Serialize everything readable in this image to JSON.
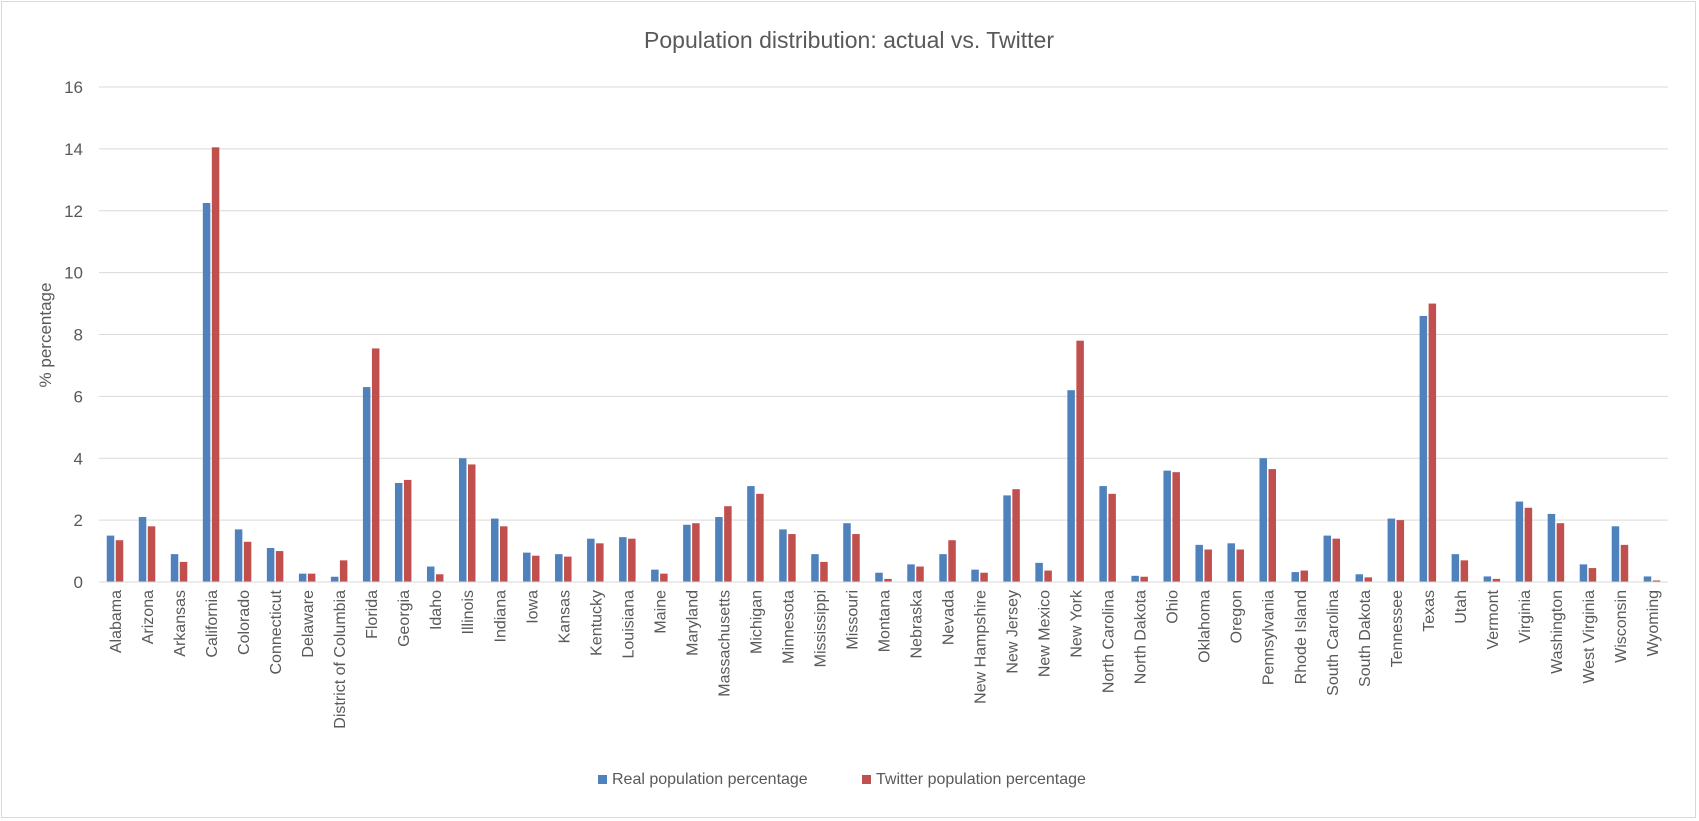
{
  "chart_data": {
    "type": "bar",
    "title": "Population distribution: actual vs. Twitter",
    "xlabel": "",
    "ylabel": "% percentage",
    "ylim": [
      0,
      16
    ],
    "yticks": [
      0,
      2,
      4,
      6,
      8,
      10,
      12,
      14,
      16
    ],
    "grid": true,
    "legend_position": "bottom",
    "categories": [
      "Alabama",
      "Arizona",
      "Arkansas",
      "California",
      "Colorado",
      "Connecticut",
      "Delaware",
      "District of Columbia",
      "Florida",
      "Georgia",
      "Idaho",
      "Illinois",
      "Indiana",
      "Iowa",
      "Kansas",
      "Kentucky",
      "Louisiana",
      "Maine",
      "Maryland",
      "Massachusetts",
      "Michigan",
      "Minnesota",
      "Mississippi",
      "Missouri",
      "Montana",
      "Nebraska",
      "Nevada",
      "New Hampshire",
      "New Jersey",
      "New Mexico",
      "New York",
      "North Carolina",
      "North Dakota",
      "Ohio",
      "Oklahoma",
      "Oregon",
      "Pennsylvania",
      "Rhode Island",
      "South Carolina",
      "South Dakota",
      "Tennessee",
      "Texas",
      "Utah",
      "Vermont",
      "Virginia",
      "Washington",
      "West Virginia",
      "Wisconsin",
      "Wyoming"
    ],
    "series": [
      {
        "name": "Real population percentage",
        "color": "#4f81bd",
        "values": [
          1.5,
          2.1,
          0.9,
          12.25,
          1.7,
          1.1,
          0.27,
          0.17,
          6.3,
          3.2,
          0.5,
          4.0,
          2.05,
          0.95,
          0.9,
          1.4,
          1.45,
          0.4,
          1.85,
          2.1,
          3.1,
          1.7,
          0.9,
          1.9,
          0.3,
          0.57,
          0.9,
          0.4,
          2.8,
          0.62,
          6.2,
          3.1,
          0.2,
          3.6,
          1.2,
          1.25,
          4.0,
          0.32,
          1.5,
          0.25,
          2.05,
          8.6,
          0.9,
          0.18,
          2.6,
          2.2,
          0.57,
          1.8,
          0.18
        ]
      },
      {
        "name": "Twitter population percentage",
        "color": "#c0504d",
        "values": [
          1.35,
          1.8,
          0.65,
          14.05,
          1.3,
          1.0,
          0.27,
          0.7,
          7.55,
          3.3,
          0.25,
          3.8,
          1.8,
          0.85,
          0.82,
          1.25,
          1.4,
          0.27,
          1.9,
          2.45,
          2.85,
          1.55,
          0.65,
          1.55,
          0.1,
          0.5,
          1.35,
          0.3,
          3.0,
          0.37,
          7.8,
          2.85,
          0.17,
          3.55,
          1.05,
          1.05,
          3.65,
          0.37,
          1.4,
          0.15,
          2.0,
          9.0,
          0.7,
          0.1,
          2.4,
          1.9,
          0.45,
          1.2,
          0.05
        ]
      }
    ]
  }
}
